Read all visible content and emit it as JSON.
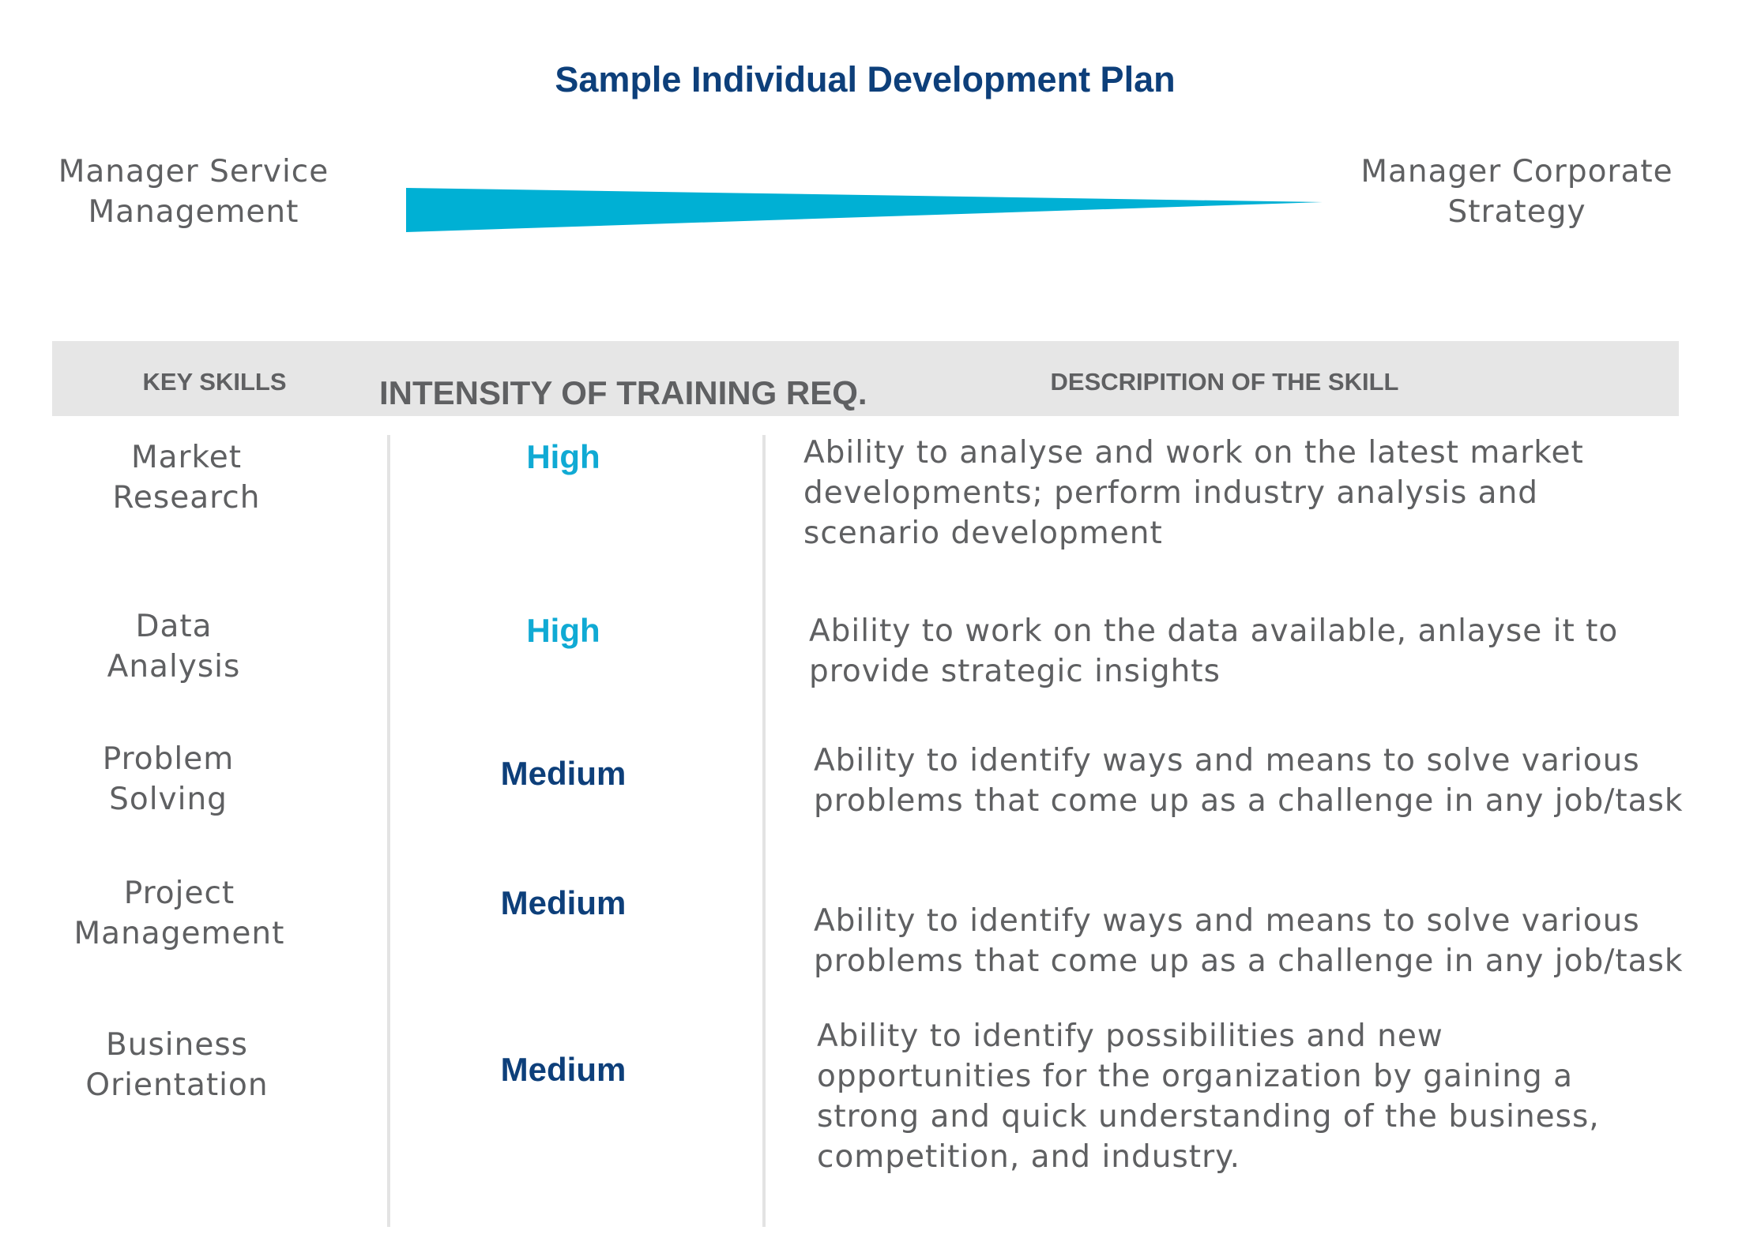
{
  "title": "Sample Individual Development Plan",
  "transition": {
    "from_role": [
      "Manager Service",
      "Management"
    ],
    "to_role": [
      "Manager Corporate",
      "Strategy"
    ],
    "arrow_color": "#00b0d4"
  },
  "table": {
    "header_background": "#e6e6e6",
    "columns": [
      "KEY SKILLS",
      "INTENSITY OF TRAINING REQ.",
      "DESCRIPITION OF THE SKILL"
    ],
    "rows": [
      {
        "skill": [
          "Market",
          "Research"
        ],
        "intensity": "High",
        "description": [
          "Ability to analyse and work on the latest market",
          "developments; perform industry analysis and",
          "scenario development"
        ]
      },
      {
        "skill": [
          "Data",
          "Analysis"
        ],
        "intensity": "High",
        "description": [
          "Ability to work on the data available, anlayse it to",
          "provide strategic insights"
        ]
      },
      {
        "skill": [
          "Problem",
          "Solving"
        ],
        "intensity": "Medium",
        "description": [
          "Ability to identify ways and means to solve various",
          "problems that come up as a challenge in any job/task"
        ]
      },
      {
        "skill": [
          "Project",
          "Management"
        ],
        "intensity": "Medium",
        "description": [
          "Ability to identify ways and means to solve various",
          "problems that come up as a challenge in any job/task"
        ]
      },
      {
        "skill": [
          "Business",
          "Orientation"
        ],
        "intensity": "Medium",
        "description": [
          "Ability to identify possibilities and new",
          "opportunities for the organization by gaining a",
          "strong and quick understanding of the business,",
          "competition, and industry."
        ]
      }
    ]
  },
  "colors": {
    "title": "#0d3f7a",
    "high": "#10aad4",
    "medium": "#0d3f7a",
    "body_text": "#5f6062"
  }
}
